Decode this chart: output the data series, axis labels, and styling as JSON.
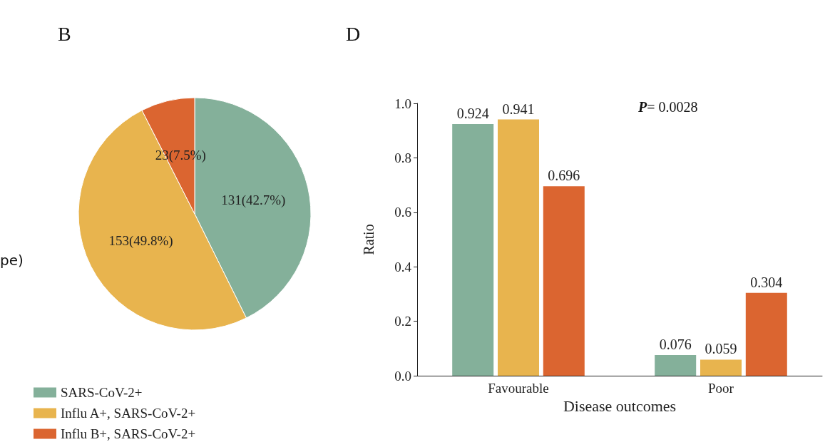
{
  "chart_data": [
    {
      "type": "pie",
      "title": "B",
      "categories": [
        "SARS-CoV-2+",
        "Influ A+, SARS-CoV-2+",
        "Influ B+, SARS-CoV-2+"
      ],
      "values": [
        131,
        153,
        23
      ],
      "colors": [
        "#84b09a",
        "#e8b44e",
        "#db6530"
      ],
      "value_labels": [
        "131(42.7%)",
        "153(49.8%)",
        "23(7.5%)"
      ],
      "legend": "bottom",
      "annotations": [
        "pe)"
      ]
    },
    {
      "type": "bar",
      "title": "D",
      "categories": [
        "Favourable",
        "Poor"
      ],
      "xlabel": "Disease outcomes",
      "ylabel": "Ratio",
      "ylim": [
        0,
        1
      ],
      "yticks": [
        {
          "value": 0,
          "label": "0.0"
        },
        {
          "value": 0.2,
          "label": "0.2"
        },
        {
          "value": 0.4,
          "label": "0.4"
        },
        {
          "value": 0.6,
          "label": "0.6"
        },
        {
          "value": 0.8,
          "label": "0.8"
        },
        {
          "value": 1,
          "label": "1.0"
        }
      ],
      "data_labels": true,
      "grid": false,
      "annotations": [
        "P= 0.0028"
      ],
      "series": [
        {
          "color": "#84b09a",
          "values": [
            0.924,
            0.076
          ]
        },
        {
          "color": "#e8b44e",
          "values": [
            0.941,
            0.059
          ]
        },
        {
          "color": "#db6530",
          "values": [
            0.696,
            0.304
          ]
        }
      ]
    }
  ]
}
